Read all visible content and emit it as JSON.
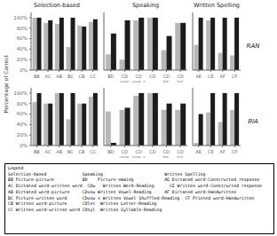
{
  "chart_data": [
    {
      "type": "bar",
      "title": "Selection-based",
      "categories": [
        "BB",
        "AC",
        "AB",
        "BC",
        "CB",
        "CC"
      ],
      "series": [
        {
          "color": "#b8b8b8",
          "values": [
            100,
            90,
            88,
            44,
            85,
            92
          ]
        },
        {
          "color": "#1c1c1c",
          "values": [
            100,
            95,
            100,
            100,
            83,
            97
          ]
        }
      ],
      "ylim": [
        0,
        110
      ],
      "yticks": [
        {
          "value": 0,
          "label": "0%"
        },
        {
          "value": 20,
          "label": "20%"
        },
        {
          "value": 40,
          "label": "40%"
        },
        {
          "value": 60,
          "label": "60%"
        },
        {
          "value": 80,
          "label": "80%"
        },
        {
          "value": 100,
          "label": "100%"
        }
      ],
      "grid": false
    },
    {
      "type": "bar",
      "title": "Speaking",
      "categories": [
        "BD",
        "CD\nvow.",
        "CD\nvow. s",
        "CD",
        "CD\nlet.",
        "CD\nsyl."
      ],
      "series": [
        {
          "color": "#b8b8b8",
          "values": [
            30,
            20,
            95,
            100,
            38,
            90
          ]
        },
        {
          "color": "#1c1c1c",
          "values": [
            70,
            95,
            100,
            100,
            65,
            90
          ]
        }
      ],
      "ylim": [
        0,
        110
      ],
      "yticks": [
        0,
        20,
        40,
        60,
        80,
        100
      ],
      "tick_labels": "x",
      "grid": false
    },
    {
      "type": "bar",
      "title": "Written Spelling",
      "categories": [
        "AE",
        "CE",
        "AF",
        "CF"
      ],
      "series": [
        {
          "color": "#b8b8b8",
          "values": [
            48,
            95,
            33,
            28
          ]
        },
        {
          "color": "#1c1c1c",
          "values": [
            100,
            100,
            100,
            100
          ]
        }
      ],
      "ylim": [
        0,
        110
      ],
      "yticks": [
        0,
        20,
        40,
        60,
        80,
        100
      ],
      "tick_labels": "x",
      "grid": false,
      "annotations": [
        "RAN"
      ]
    },
    {
      "type": "bar",
      "categories": [
        "BB",
        "AC",
        "AB",
        "BC",
        "CB",
        "CC"
      ],
      "series": [
        {
          "color": "#b8b8b8",
          "values": [
            83,
            80,
            100,
            50,
            80,
            93
          ]
        },
        {
          "color": "#1c1c1c",
          "values": [
            100,
            80,
            100,
            100,
            80,
            100
          ]
        }
      ],
      "ylim": [
        0,
        110
      ],
      "yticks": [
        {
          "value": 0,
          "label": "0%"
        },
        {
          "value": 20,
          "label": "20%"
        },
        {
          "value": 40,
          "label": "40%"
        },
        {
          "value": 60,
          "label": "60%"
        },
        {
          "value": 80,
          "label": "80%"
        },
        {
          "value": 100,
          "label": "100%"
        }
      ],
      "grid": false
    },
    {
      "type": "bar",
      "categories": [
        "BD",
        "CD\nvow.",
        "CD\nvow. s",
        "CD",
        "CD\nlet.",
        "CD\nsyl."
      ],
      "series": [
        {
          "color": "#b8b8b8",
          "values": [
            65,
            68,
            95,
            100,
            68,
            68
          ]
        },
        {
          "color": "#1c1c1c",
          "values": [
            5,
            72,
            100,
            100,
            80,
            80
          ]
        }
      ],
      "ylim": [
        0,
        110
      ],
      "yticks": [
        0,
        20,
        40,
        60,
        80,
        100
      ],
      "tick_labels": "x",
      "grid": false
    },
    {
      "type": "bar",
      "categories": [
        "AE",
        "CE",
        "AF",
        "CF"
      ],
      "series": [
        {
          "color": "#b8b8b8",
          "values": [
            5,
            63,
            45,
            68
          ]
        },
        {
          "color": "#1c1c1c",
          "values": [
            60,
            100,
            100,
            100
          ]
        }
      ],
      "ylim": [
        0,
        110
      ],
      "yticks": [
        0,
        20,
        40,
        60,
        80,
        100
      ],
      "tick_labels": "x",
      "grid": false,
      "annotations": [
        "BIA"
      ]
    }
  ],
  "ylabel": "Percentage of Correct",
  "annotations": [
    "Legend",
    "Selection-based              Speaking                        Written Spelling",
    "BB Picture-picture           BD    Picture-naming            AE Dictated word-Constructed response",
    "AC Dictated word-written word  CDw   Written Word-Reading      CE Written word-Constructed response",
    "AB Dictated word-picture     CDvow Written Vowel-Reading     AF Dictated word-Handwritten",
    "BC Picture-written word      CDvow s Written Vowel Shuffled-Reading  CF Printed word-Handwritten",
    "CB Written word-picture      CDlet  Written Letter-Reading",
    "CC Written word-written word CDsyl  Written Syllable-Reading"
  ]
}
